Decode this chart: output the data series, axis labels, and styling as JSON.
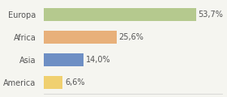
{
  "categories": [
    "America",
    "Asia",
    "Africa",
    "Europa"
  ],
  "values": [
    6.6,
    14.0,
    25.6,
    53.7
  ],
  "labels": [
    "6,6%",
    "14,0%",
    "25,6%",
    "53,7%"
  ],
  "bar_colors": [
    "#f0d070",
    "#6e8fc4",
    "#e8b07a",
    "#b5c98e"
  ],
  "background_color": "#f5f5f0",
  "xlim": [
    0,
    63
  ],
  "label_fontsize": 7,
  "bar_height": 0.55
}
